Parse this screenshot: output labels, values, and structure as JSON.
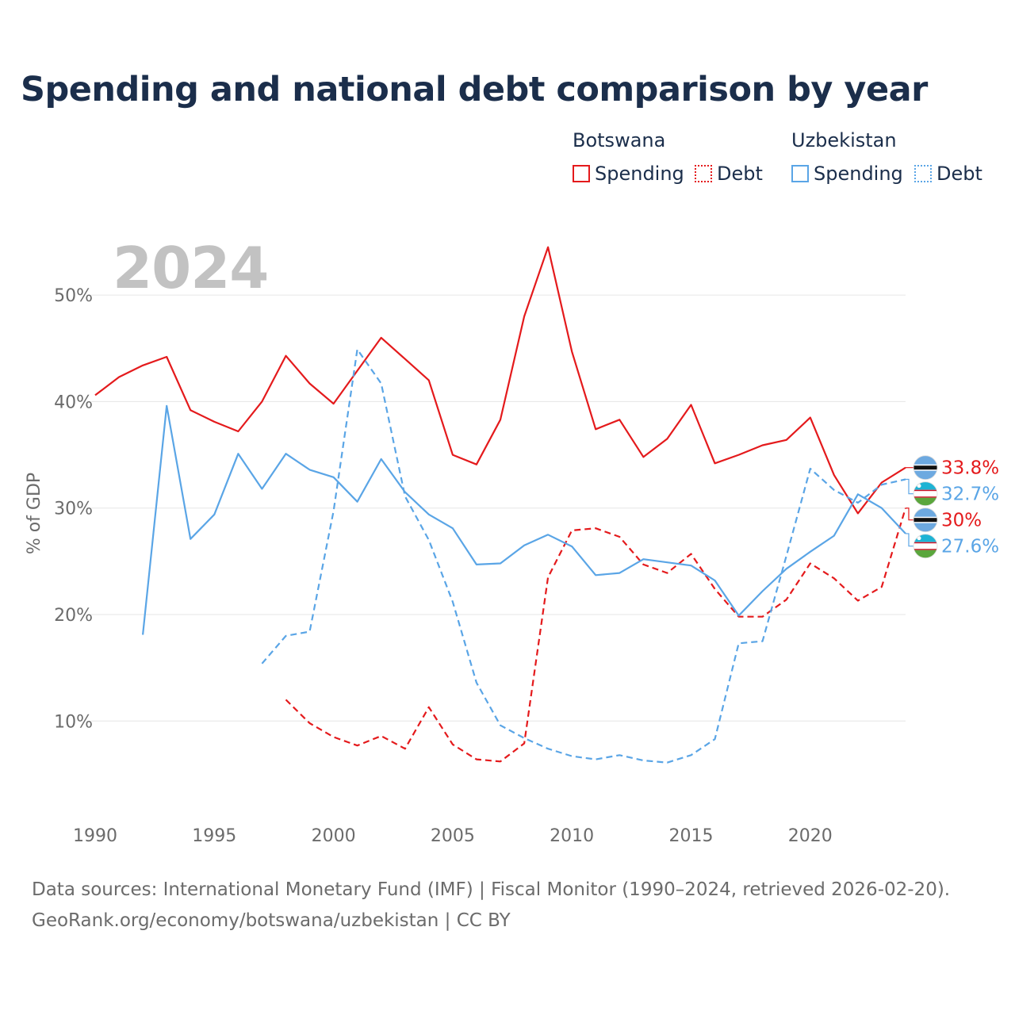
{
  "title": "Spending and national debt comparison by year",
  "year_overlay": "2024",
  "legend": {
    "groups": [
      {
        "name": "Botswana",
        "items": [
          {
            "label": "Spending",
            "style": "solid",
            "color": "#e41a1c"
          },
          {
            "label": "Debt",
            "style": "dotted",
            "color": "#e41a1c"
          }
        ]
      },
      {
        "name": "Uzbekistan",
        "items": [
          {
            "label": "Spending",
            "style": "solid",
            "color": "#5aa5e6"
          },
          {
            "label": "Debt",
            "style": "dotted",
            "color": "#5aa5e6"
          }
        ]
      }
    ]
  },
  "footer": {
    "line1": "Data sources: International Monetary Fund (IMF) | Fiscal Monitor (1990–2024, retrieved 2026-02-20).",
    "line2": "GeoRank.org/economy/botswana/uzbekistan | CC BY"
  },
  "colors": {
    "botswana": "#e41a1c",
    "uzbekistan": "#5aa5e6",
    "grid": "#e6e6e6",
    "axis_text": "#6b6b6b"
  },
  "chart_data": {
    "type": "line",
    "title": "Spending and national debt comparison by year",
    "xlabel": "",
    "ylabel": "% of GDP",
    "xlim": [
      1990,
      2024
    ],
    "ylim": [
      2.5,
      55
    ],
    "x_ticks": [
      1990,
      1995,
      2000,
      2005,
      2010,
      2015,
      2020
    ],
    "x_tick_labels": [
      "1990",
      "1995",
      "2000",
      "2005",
      "2010",
      "2015",
      "2020"
    ],
    "y_ticks": [
      10,
      20,
      30,
      40,
      50
    ],
    "y_tick_labels": [
      "10%",
      "20%",
      "30%",
      "40%",
      "50%"
    ],
    "grid": true,
    "series": [
      {
        "name": "Botswana Spending",
        "country": "botswana",
        "style": "solid",
        "color": "#e41a1c",
        "end_label": "33.8%",
        "flag": "botswana",
        "points": [
          [
            1990,
            40.6
          ],
          [
            1991,
            42.3
          ],
          [
            1992,
            43.4
          ],
          [
            1993,
            44.2
          ],
          [
            1994,
            39.2
          ],
          [
            1995,
            38.1
          ],
          [
            1996,
            37.2
          ],
          [
            1997,
            40.0
          ],
          [
            1998,
            44.3
          ],
          [
            1999,
            41.7
          ],
          [
            2000,
            39.8
          ],
          [
            2001,
            42.9
          ],
          [
            2002,
            46.0
          ],
          [
            2003,
            44.0
          ],
          [
            2004,
            42.0
          ],
          [
            2005,
            35.0
          ],
          [
            2006,
            34.1
          ],
          [
            2007,
            38.3
          ],
          [
            2008,
            48.0
          ],
          [
            2009,
            54.5
          ],
          [
            2010,
            44.7
          ],
          [
            2011,
            37.4
          ],
          [
            2012,
            38.3
          ],
          [
            2013,
            34.8
          ],
          [
            2014,
            36.5
          ],
          [
            2015,
            39.7
          ],
          [
            2016,
            34.2
          ],
          [
            2017,
            35.0
          ],
          [
            2018,
            35.9
          ],
          [
            2019,
            36.4
          ],
          [
            2020,
            38.5
          ],
          [
            2021,
            33.1
          ],
          [
            2022,
            29.5
          ],
          [
            2023,
            32.4
          ],
          [
            2024,
            33.8
          ]
        ]
      },
      {
        "name": "Botswana Debt",
        "country": "botswana",
        "style": "dashed",
        "color": "#e41a1c",
        "end_label": "30%",
        "flag": "botswana",
        "points": [
          [
            1998,
            12.0
          ],
          [
            1999,
            9.8
          ],
          [
            2000,
            8.5
          ],
          [
            2001,
            7.7
          ],
          [
            2002,
            8.6
          ],
          [
            2003,
            7.4
          ],
          [
            2004,
            11.3
          ],
          [
            2005,
            7.8
          ],
          [
            2006,
            6.4
          ],
          [
            2007,
            6.2
          ],
          [
            2008,
            7.9
          ],
          [
            2009,
            23.5
          ],
          [
            2010,
            27.9
          ],
          [
            2011,
            28.1
          ],
          [
            2012,
            27.3
          ],
          [
            2013,
            24.7
          ],
          [
            2014,
            23.9
          ],
          [
            2015,
            25.7
          ],
          [
            2016,
            22.4
          ],
          [
            2017,
            19.8
          ],
          [
            2018,
            19.8
          ],
          [
            2019,
            21.4
          ],
          [
            2020,
            24.8
          ],
          [
            2021,
            23.4
          ],
          [
            2022,
            21.3
          ],
          [
            2023,
            22.6
          ],
          [
            2024,
            30.0
          ]
        ]
      },
      {
        "name": "Uzbekistan Spending",
        "country": "uzbekistan",
        "style": "solid",
        "color": "#5aa5e6",
        "end_label": "27.6%",
        "flag": "uzbekistan",
        "points": [
          [
            1992,
            18.1
          ],
          [
            1993,
            39.6
          ],
          [
            1994,
            27.1
          ],
          [
            1995,
            29.4
          ],
          [
            1996,
            35.1
          ],
          [
            1997,
            31.8
          ],
          [
            1998,
            35.1
          ],
          [
            1999,
            33.6
          ],
          [
            2000,
            32.9
          ],
          [
            2001,
            30.6
          ],
          [
            2002,
            34.6
          ],
          [
            2003,
            31.5
          ],
          [
            2004,
            29.4
          ],
          [
            2005,
            28.1
          ],
          [
            2006,
            24.7
          ],
          [
            2007,
            24.8
          ],
          [
            2008,
            26.5
          ],
          [
            2009,
            27.5
          ],
          [
            2010,
            26.4
          ],
          [
            2011,
            23.7
          ],
          [
            2012,
            23.9
          ],
          [
            2013,
            25.2
          ],
          [
            2014,
            24.9
          ],
          [
            2015,
            24.6
          ],
          [
            2016,
            23.2
          ],
          [
            2017,
            19.9
          ],
          [
            2018,
            22.2
          ],
          [
            2019,
            24.3
          ],
          [
            2020,
            25.9
          ],
          [
            2021,
            27.4
          ],
          [
            2022,
            31.3
          ],
          [
            2023,
            30.0
          ],
          [
            2024,
            27.6
          ]
        ]
      },
      {
        "name": "Uzbekistan Debt",
        "country": "uzbekistan",
        "style": "dashed",
        "color": "#5aa5e6",
        "end_label": "32.7%",
        "flag": "uzbekistan",
        "points": [
          [
            1997,
            15.4
          ],
          [
            1998,
            18.0
          ],
          [
            1999,
            18.4
          ],
          [
            2000,
            29.7
          ],
          [
            2001,
            44.9
          ],
          [
            2002,
            41.7
          ],
          [
            2003,
            31.1
          ],
          [
            2004,
            27.0
          ],
          [
            2005,
            21.2
          ],
          [
            2006,
            13.6
          ],
          [
            2007,
            9.6
          ],
          [
            2008,
            8.4
          ],
          [
            2009,
            7.4
          ],
          [
            2010,
            6.7
          ],
          [
            2011,
            6.4
          ],
          [
            2012,
            6.8
          ],
          [
            2013,
            6.3
          ],
          [
            2014,
            6.1
          ],
          [
            2015,
            6.8
          ],
          [
            2016,
            8.3
          ],
          [
            2017,
            17.3
          ],
          [
            2018,
            17.5
          ],
          [
            2019,
            25.5
          ],
          [
            2020,
            33.7
          ],
          [
            2021,
            31.7
          ],
          [
            2022,
            30.5
          ],
          [
            2023,
            32.2
          ],
          [
            2024,
            32.7
          ]
        ]
      }
    ]
  }
}
